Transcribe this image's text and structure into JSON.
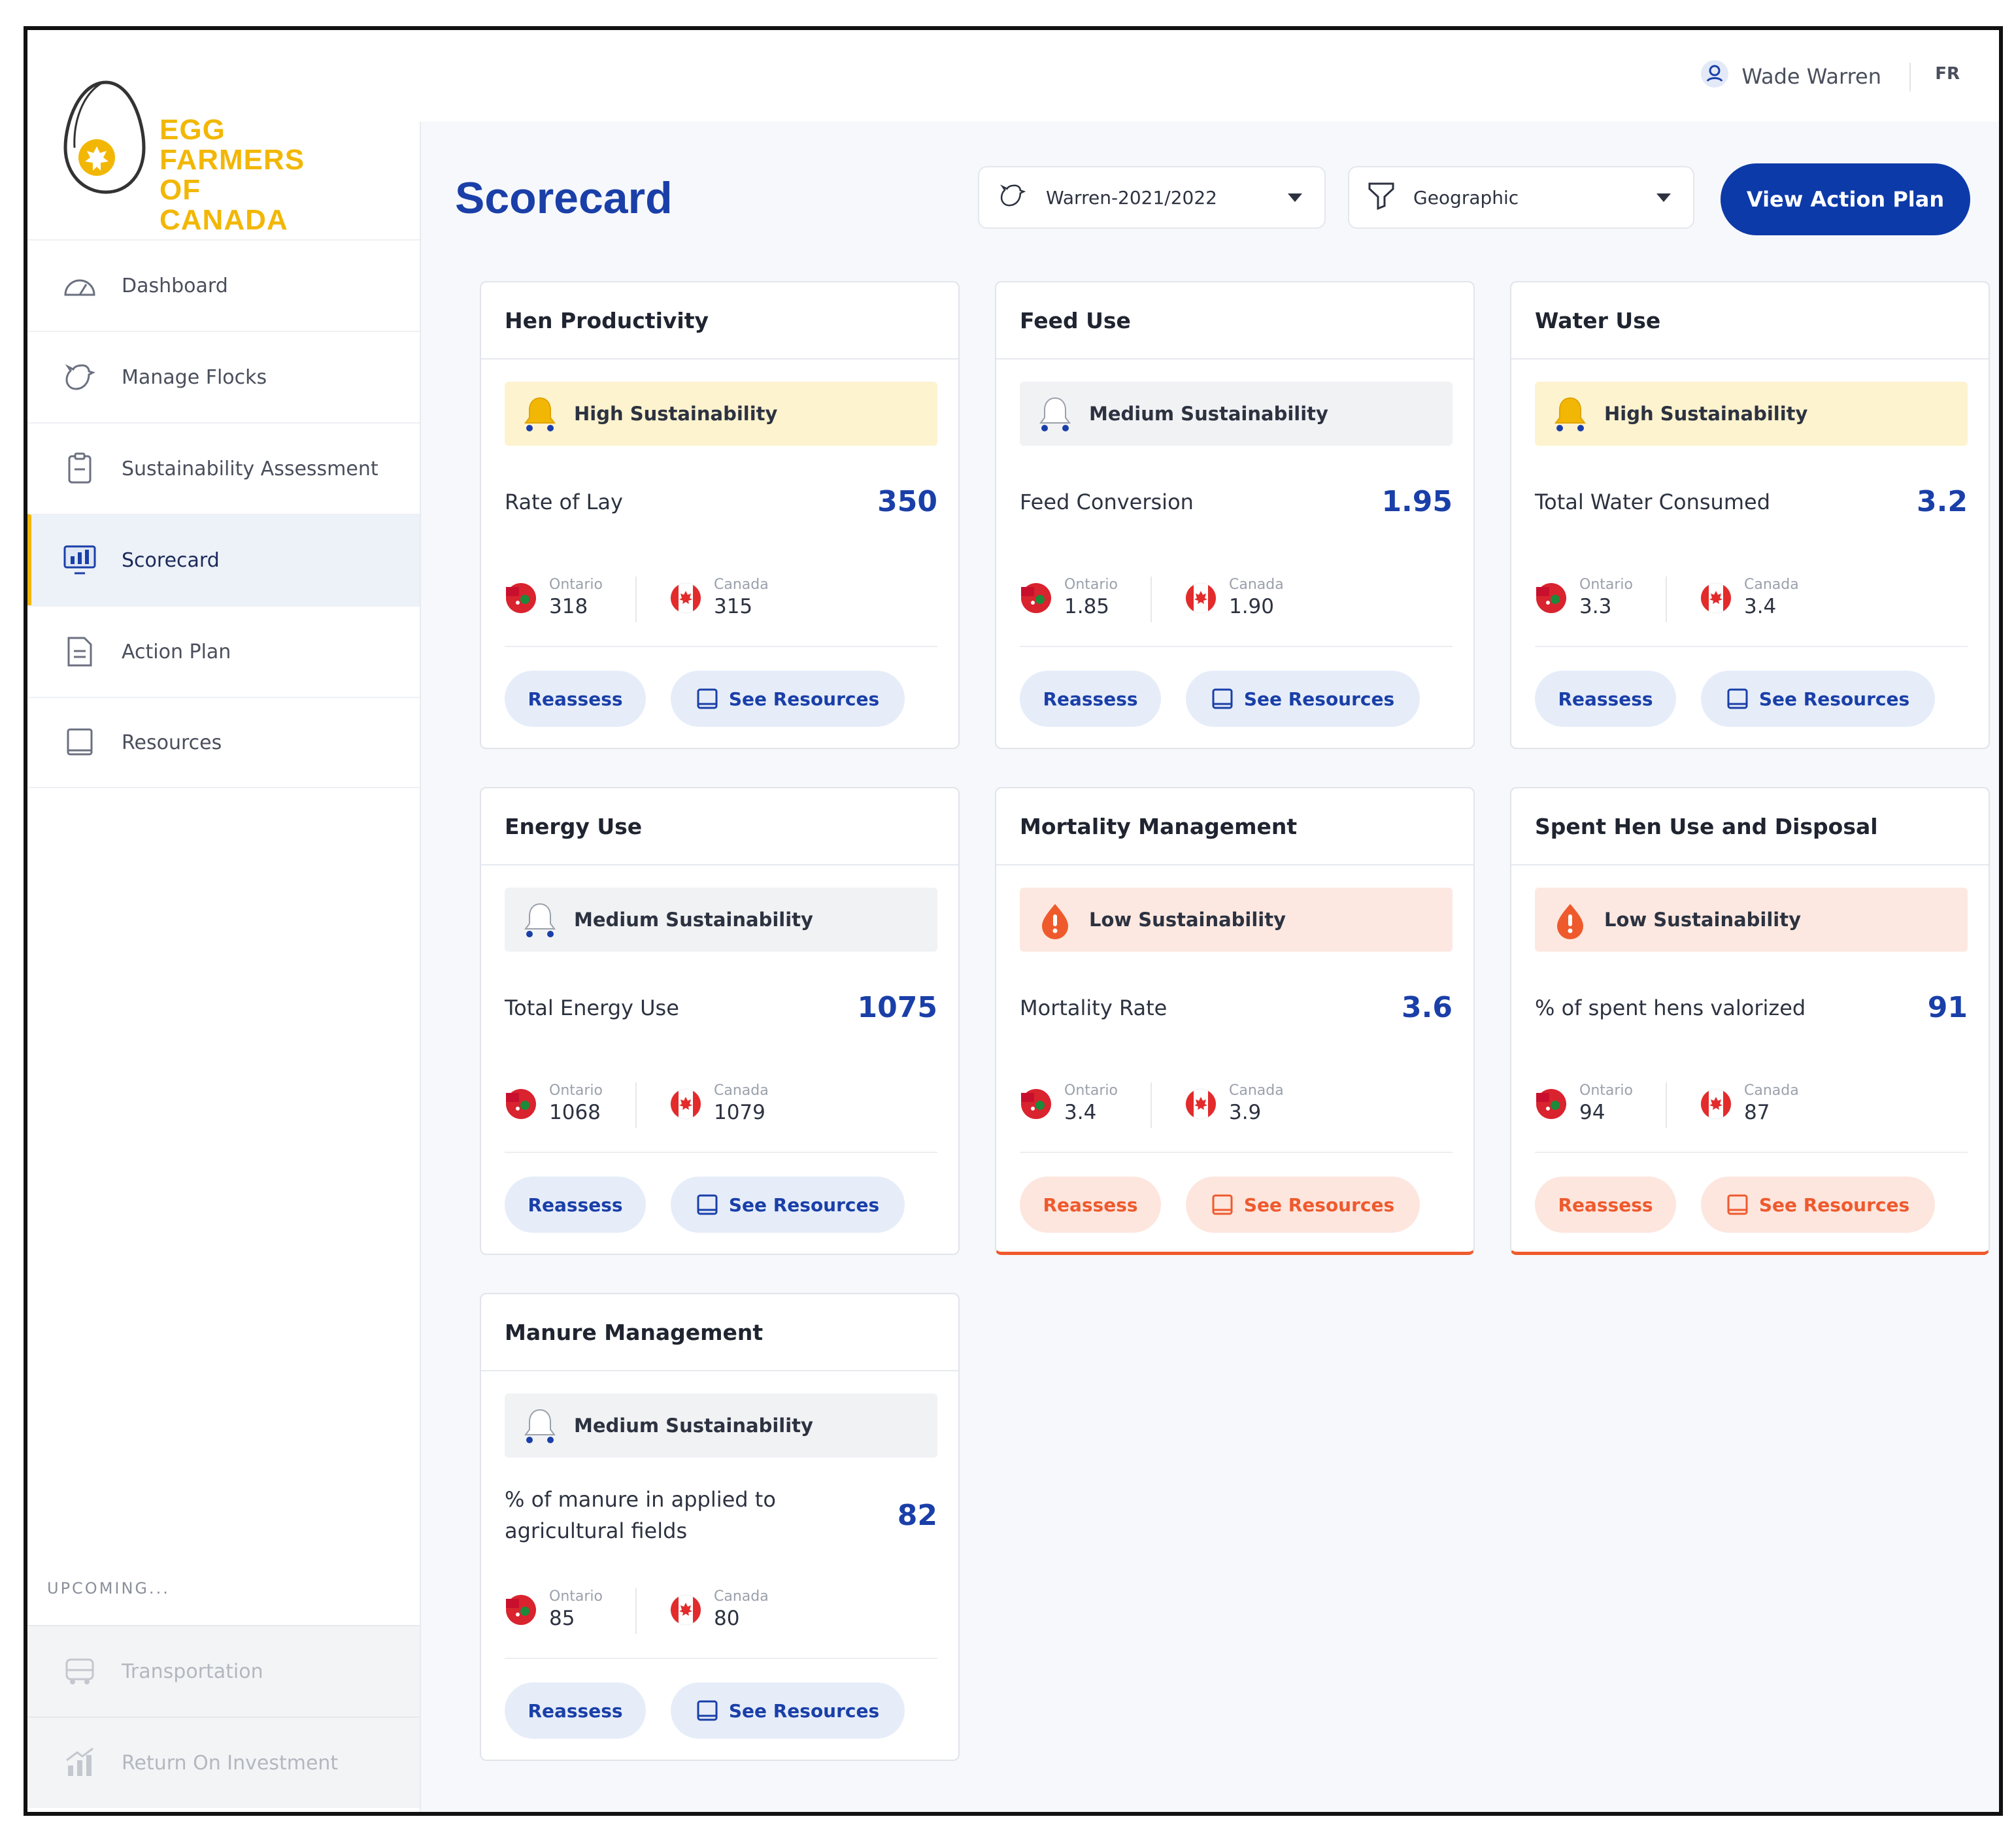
{
  "brand": {
    "line1": "EGG FARMERS",
    "line2": "OF CANADA"
  },
  "sidebar": {
    "items": [
      {
        "label": "Dashboard",
        "icon": "gauge-icon"
      },
      {
        "label": "Manage Flocks",
        "icon": "hen-icon"
      },
      {
        "label": "Sustainability Assessment",
        "icon": "clipboard-icon"
      },
      {
        "label": "Scorecard",
        "icon": "monitor-chart-icon",
        "active": true
      },
      {
        "label": "Action Plan",
        "icon": "checklist-icon"
      },
      {
        "label": "Resources",
        "icon": "book-icon"
      }
    ],
    "upcoming_label": "UPCOMING...",
    "upcoming": [
      {
        "label": "Transportation",
        "icon": "truck-icon"
      },
      {
        "label": "Return On Investment",
        "icon": "roi-chart-icon"
      }
    ]
  },
  "topbar": {
    "user_name": "Wade Warren",
    "language": "FR"
  },
  "header": {
    "title": "Scorecard",
    "flock_select": "Warren-2021/2022",
    "compare_select": "Geographic",
    "action_button": "View Action Plan"
  },
  "colors": {
    "primary": "#0d3aa9",
    "accent": "#f2b705",
    "low": "#ef5a2c",
    "high_bg": "#fdf3cf",
    "low_bg": "#fde8e1",
    "medium_bg": "#f1f2f4"
  },
  "common": {
    "ontario": "Ontario",
    "canada": "Canada",
    "reassess": "Reassess",
    "see_resources": "See Resources"
  },
  "cards": [
    {
      "title": "Hen Productivity",
      "level": "high",
      "badge": "High Sustainability",
      "metric": "Rate of Lay",
      "value": "350",
      "ontario": "318",
      "canada": "315"
    },
    {
      "title": "Feed Use",
      "level": "medium",
      "badge": "Medium Sustainability",
      "metric": "Feed Conversion",
      "value": "1.95",
      "ontario": "1.85",
      "canada": "1.90"
    },
    {
      "title": "Water Use",
      "level": "high",
      "badge": "High Sustainability",
      "metric": "Total Water Consumed",
      "value": "3.2",
      "ontario": "3.3",
      "canada": "3.4"
    },
    {
      "title": "Energy Use",
      "level": "medium",
      "badge": "Medium Sustainability",
      "metric": "Total Energy Use",
      "value": "1075",
      "ontario": "1068",
      "canada": "1079"
    },
    {
      "title": "Mortality Management",
      "level": "low",
      "badge": "Low Sustainability",
      "metric": "Mortality Rate",
      "value": "3.6",
      "ontario": "3.4",
      "canada": "3.9"
    },
    {
      "title": "Spent Hen Use and Disposal",
      "level": "low",
      "badge": "Low Sustainability",
      "metric": "% of spent hens valorized",
      "value": "91",
      "ontario": "94",
      "canada": "87"
    },
    {
      "title": "Manure Management",
      "level": "medium",
      "badge": "Medium Sustainability",
      "metric": "% of manure in applied to agricultural fields",
      "value": "82",
      "ontario": "85",
      "canada": "80"
    }
  ]
}
